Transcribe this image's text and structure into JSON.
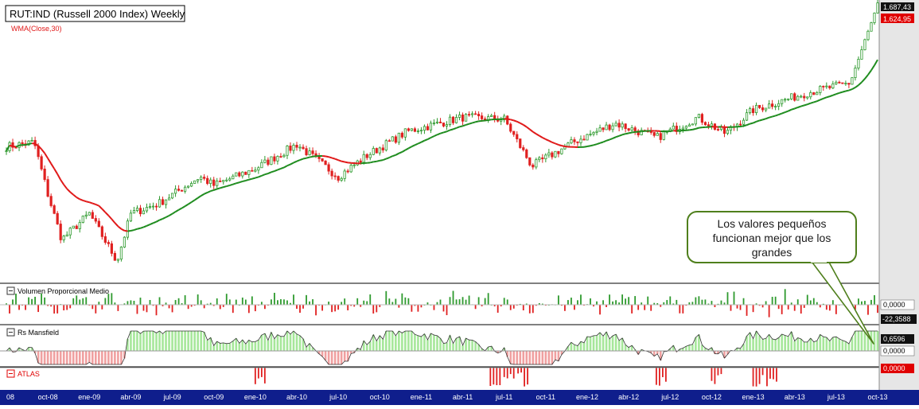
{
  "header": {
    "title": "RUT:IND (Russell 2000 Index) Weekly",
    "wma_label": "WMA(Close,30)",
    "price_tag_top": "1.687,43",
    "price_tag_wma": "1.624,95"
  },
  "callout": {
    "text_lines": [
      "Los valores pequeños",
      "funcionan mejor que los",
      "grandes"
    ]
  },
  "panels": {
    "volume": {
      "title": "Volumen Proporcional Medio",
      "tag_zero": "0,0000",
      "tag_value": "-22,3588"
    },
    "mansfield": {
      "title": "Rs Mansfield",
      "tag_value": "0,6596",
      "tag_zero": "0,0000"
    },
    "atlas": {
      "title": "ATLAS",
      "tag_zero": "0,0000"
    }
  },
  "colors": {
    "up": "#2e9a2e",
    "down": "#e02020",
    "wma_up": "#1e8c1e",
    "wma_down": "#e01818",
    "mansfield_pos": "#a6e79a",
    "mansfield_neg": "#f0a0a0",
    "axis_bar": "#0f1e8c",
    "tag_red": "#e00000",
    "callout_border": "#4f7f1c",
    "callout_fill": "#ffffff"
  },
  "chart_data": {
    "type": "candlestick",
    "title": "RUT:IND (Russell 2000 Index) Weekly",
    "x_ticks": [
      "08",
      "oct-08",
      "ene-09",
      "abr-09",
      "jul-09",
      "oct-09",
      "ene-10",
      "abr-10",
      "jul-10",
      "oct-10",
      "ene-11",
      "abr-11",
      "jul-11",
      "oct-11",
      "ene-12",
      "abr-12",
      "jul-12",
      "oct-12",
      "ene-13",
      "abr-13",
      "jul-13",
      "oct-13"
    ],
    "x_range": [
      "2008-07",
      "2013-10"
    ],
    "y_range_estimate": [
      340,
      1700
    ],
    "price_path": [
      [
        "2008-07",
        720
      ],
      [
        "2008-09",
        740
      ],
      [
        "2008-10",
        540
      ],
      [
        "2008-11",
        410
      ],
      [
        "2009-01",
        480
      ],
      [
        "2009-03",
        360
      ],
      [
        "2009-04",
        480
      ],
      [
        "2009-06",
        510
      ],
      [
        "2009-09",
        600
      ],
      [
        "2009-10",
        570
      ],
      [
        "2010-01",
        630
      ],
      [
        "2010-04",
        730
      ],
      [
        "2010-07",
        600
      ],
      [
        "2010-09",
        680
      ],
      [
        "2010-12",
        790
      ],
      [
        "2011-04",
        860
      ],
      [
        "2011-07",
        850
      ],
      [
        "2011-09",
        640
      ],
      [
        "2011-12",
        740
      ],
      [
        "2012-03",
        830
      ],
      [
        "2012-06",
        760
      ],
      [
        "2012-09",
        860
      ],
      [
        "2012-11",
        780
      ],
      [
        "2013-01",
        900
      ],
      [
        "2013-05",
        1000
      ],
      [
        "2013-08",
        1060
      ],
      [
        "2013-10",
        1687
      ]
    ],
    "series": [
      {
        "name": "WMA(Close,30)"
      }
    ],
    "subpanels": [
      "Volumen Proporcional Medio",
      "Rs Mansfield",
      "ATLAS"
    ],
    "legend_position": "top-left"
  }
}
